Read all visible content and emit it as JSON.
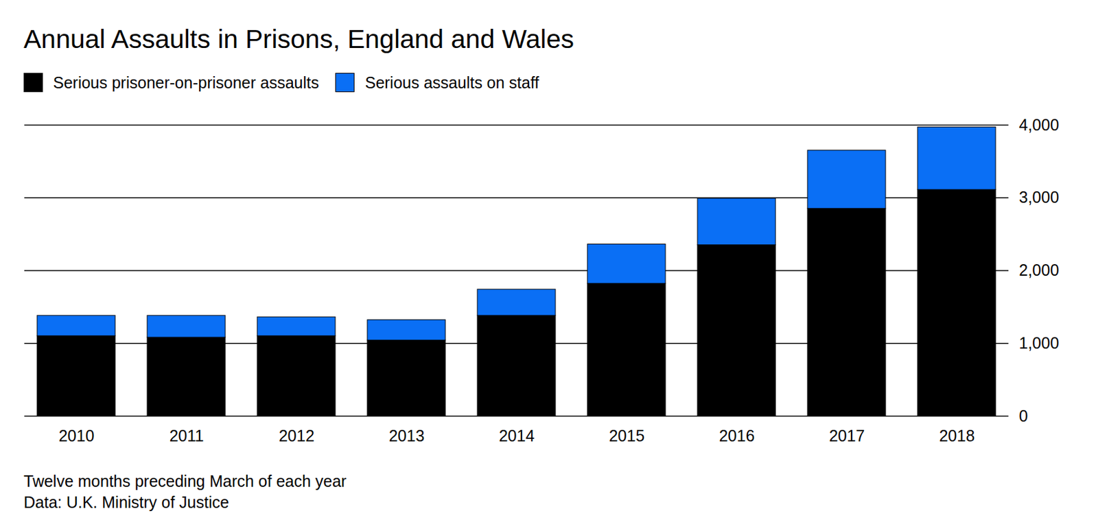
{
  "chart_data": {
    "type": "bar",
    "title": "Annual Assaults in Prisons, England and Wales",
    "stacked": true,
    "grid": true,
    "legend": "top-left",
    "categories": [
      "2010",
      "2011",
      "2012",
      "2013",
      "2014",
      "2015",
      "2016",
      "2017",
      "2018"
    ],
    "series": [
      {
        "name": "Serious prisoner-on-prisoner assaults",
        "color": "#000000",
        "values": [
          1100,
          1080,
          1100,
          1040,
          1380,
          1820,
          2350,
          2850,
          3110
        ]
      },
      {
        "name": "Serious assaults on staff",
        "color": "#0a6ff5",
        "values": [
          280,
          300,
          260,
          280,
          360,
          540,
          640,
          800,
          860
        ]
      }
    ],
    "ylim": [
      0,
      4000
    ],
    "yticks": [
      0,
      {
        "value": 1000,
        "label": "1,000"
      },
      {
        "value": 2000,
        "label": "2,000"
      },
      {
        "value": 3000,
        "label": "3,000"
      },
      {
        "value": 4000,
        "label": "4,000"
      }
    ],
    "footnotes": [
      "Twelve months preceding March of each year",
      "Data: U.K. Ministry of Justice"
    ]
  }
}
